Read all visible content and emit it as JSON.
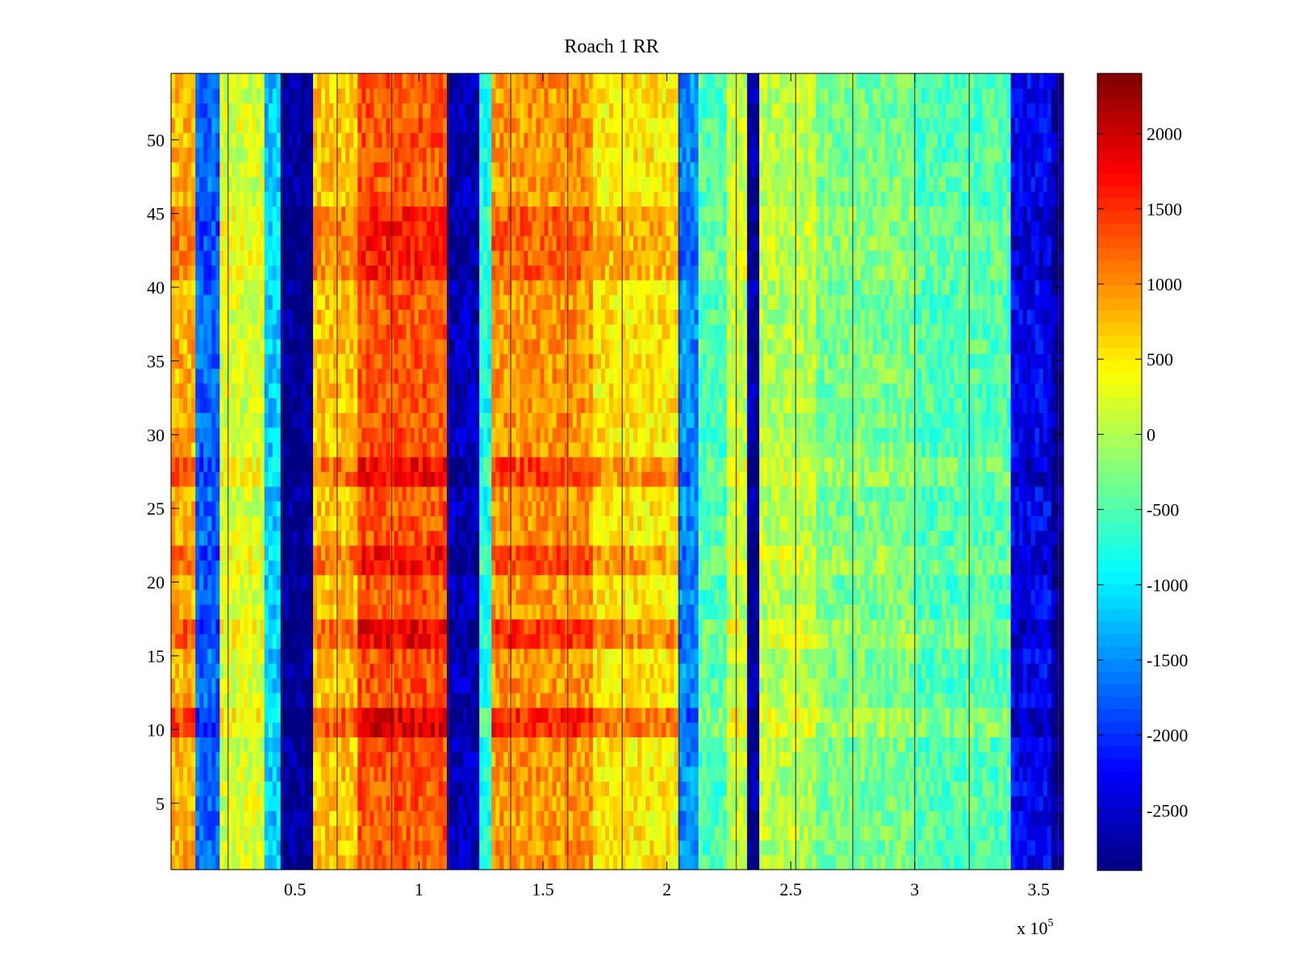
{
  "chart_data": {
    "type": "heatmap",
    "title": "Roach 1 RR",
    "xlabel": "",
    "ylabel": "",
    "x_exponent_label": "x 10",
    "x_exponent_power": "5",
    "xlim": [
      0,
      3.6
    ],
    "ylim": [
      0.5,
      54.5
    ],
    "x_ticks": [
      {
        "value": 0.5,
        "label": "0.5"
      },
      {
        "value": 1.0,
        "label": "1"
      },
      {
        "value": 1.5,
        "label": "1.5"
      },
      {
        "value": 2.0,
        "label": "2"
      },
      {
        "value": 2.5,
        "label": "2.5"
      },
      {
        "value": 3.0,
        "label": "3"
      },
      {
        "value": 3.5,
        "label": "3.5"
      }
    ],
    "y_ticks": [
      {
        "value": 5,
        "label": "5"
      },
      {
        "value": 10,
        "label": "10"
      },
      {
        "value": 15,
        "label": "15"
      },
      {
        "value": 20,
        "label": "20"
      },
      {
        "value": 25,
        "label": "25"
      },
      {
        "value": 30,
        "label": "30"
      },
      {
        "value": 35,
        "label": "35"
      },
      {
        "value": 40,
        "label": "40"
      },
      {
        "value": 45,
        "label": "45"
      },
      {
        "value": 50,
        "label": "50"
      }
    ],
    "rows": 54,
    "colorbar": {
      "min": -2900,
      "max": 2400,
      "colormap": "jet",
      "ticks": [
        {
          "value": 2000,
          "label": "2000"
        },
        {
          "value": 1500,
          "label": "1500"
        },
        {
          "value": 1000,
          "label": "1000"
        },
        {
          "value": 500,
          "label": "500"
        },
        {
          "value": 0,
          "label": "0"
        },
        {
          "value": -500,
          "label": "-500"
        },
        {
          "value": -1000,
          "label": "-1000"
        },
        {
          "value": -1500,
          "label": "-1500"
        },
        {
          "value": -2000,
          "label": "-2000"
        },
        {
          "value": -2500,
          "label": "-2500"
        }
      ]
    },
    "column_profile": [
      {
        "x_start": 0.0,
        "x_end": 0.1,
        "value": 800
      },
      {
        "x_start": 0.1,
        "x_end": 0.2,
        "value": -1700
      },
      {
        "x_start": 0.2,
        "x_end": 0.38,
        "value": 200
      },
      {
        "x_start": 0.38,
        "x_end": 0.44,
        "value": -1200
      },
      {
        "x_start": 0.44,
        "x_end": 0.58,
        "value": -2800
      },
      {
        "x_start": 0.58,
        "x_end": 0.75,
        "value": 700
      },
      {
        "x_start": 0.75,
        "x_end": 1.12,
        "value": 1300
      },
      {
        "x_start": 1.12,
        "x_end": 1.25,
        "value": -2600
      },
      {
        "x_start": 1.25,
        "x_end": 1.3,
        "value": -800
      },
      {
        "x_start": 1.3,
        "x_end": 1.7,
        "value": 950
      },
      {
        "x_start": 1.7,
        "x_end": 2.05,
        "value": 500
      },
      {
        "x_start": 2.05,
        "x_end": 2.12,
        "value": -1500
      },
      {
        "x_start": 2.12,
        "x_end": 2.25,
        "value": -500
      },
      {
        "x_start": 2.25,
        "x_end": 2.33,
        "value": 100
      },
      {
        "x_start": 2.33,
        "x_end": 2.38,
        "value": -2700
      },
      {
        "x_start": 2.38,
        "x_end": 2.6,
        "value": 0
      },
      {
        "x_start": 2.6,
        "x_end": 3.0,
        "value": -300
      },
      {
        "x_start": 3.0,
        "x_end": 3.38,
        "value": -500
      },
      {
        "x_start": 3.38,
        "x_end": 3.55,
        "value": -2300
      },
      {
        "x_start": 3.55,
        "x_end": 3.6,
        "value": -2700
      }
    ],
    "row_profile": [
      {
        "y_start": 9.5,
        "y_end": 11.5,
        "value": 600
      },
      {
        "y_start": 15.5,
        "y_end": 17.5,
        "value": 500
      },
      {
        "y_start": 20.5,
        "y_end": 22.5,
        "value": 400
      },
      {
        "y_start": 26.5,
        "y_end": 28.5,
        "value": 450
      },
      {
        "y_start": 40.5,
        "y_end": 45.5,
        "value": 300
      }
    ],
    "vertical_lines_x": [
      0.23,
      0.45,
      0.67,
      0.89,
      1.12,
      1.37,
      1.6,
      1.82,
      2.05,
      2.28,
      2.52,
      2.75,
      3.0,
      3.22,
      3.58
    ]
  }
}
